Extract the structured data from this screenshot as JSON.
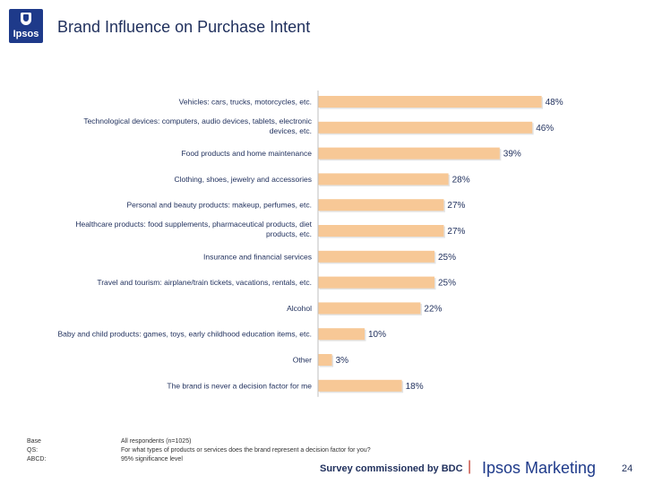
{
  "header": {
    "logo_text": "Ipsos",
    "title": "Brand Influence on Purchase Intent"
  },
  "chart_data": {
    "type": "bar",
    "orientation": "horizontal",
    "bar_color": "#f7c896",
    "categories": [
      [
        "Vehicles: cars, trucks, motorcycles, etc."
      ],
      [
        "Technological devices: computers, audio devices, tablets, electronic",
        "devices, etc."
      ],
      [
        "Food products and home maintenance"
      ],
      [
        "Clothing, shoes, jewelry and accessories"
      ],
      [
        "Personal and beauty products: makeup, perfumes, etc."
      ],
      [
        "Healthcare products: food supplements, pharmaceutical products, diet",
        "products, etc."
      ],
      [
        "Insurance and financial services"
      ],
      [
        "Travel and tourism: airplane/train tickets, vacations, rentals, etc."
      ],
      [
        "Alcohol"
      ],
      [
        "Baby and child products: games, toys, early childhood education items, etc."
      ],
      [
        "Other"
      ],
      [
        "The brand is never a decision factor for me"
      ]
    ],
    "values": [
      48,
      46,
      39,
      28,
      27,
      27,
      25,
      25,
      22,
      10,
      3,
      18
    ],
    "value_labels": [
      "48%",
      "46%",
      "39%",
      "28%",
      "27%",
      "27%",
      "25%",
      "25%",
      "22%",
      "10%",
      "3%",
      "18%"
    ],
    "xlim": [
      0,
      100
    ]
  },
  "footer": {
    "labels": [
      "Base",
      "QS:",
      "ABCD:"
    ],
    "values": [
      "All respondents (n=1025)",
      "For what types of products or services does the brand represent a decision factor for you?",
      "95% significance level"
    ],
    "commissioned": "Survey commissioned by BDC",
    "separator": "|",
    "brand": "Ipsos Marketing",
    "page_number": "24"
  }
}
